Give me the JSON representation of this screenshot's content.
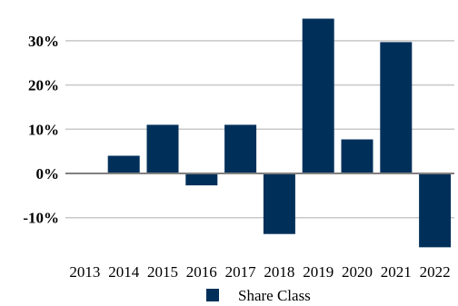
{
  "chart_data": {
    "type": "bar",
    "categories": [
      "2013",
      "2014",
      "2015",
      "2016",
      "2017",
      "2018",
      "2019",
      "2020",
      "2021",
      "2022"
    ],
    "series": [
      {
        "name": "Share Class",
        "values": [
          null,
          4.0,
          11.0,
          -2.7,
          11.0,
          -13.7,
          35.0,
          7.7,
          29.7,
          -16.7
        ]
      }
    ],
    "y_ticks": [
      -10,
      0,
      10,
      20,
      30
    ],
    "y_tick_labels": [
      "-10%",
      "0%",
      "10%",
      "20%",
      "30%"
    ],
    "ylim": [
      -17,
      35
    ],
    "grid": true,
    "legend_position": "bottom-center",
    "colors": {
      "bar": "#00305a",
      "grid": "#c8c8c8",
      "baseline": "#808080"
    }
  }
}
